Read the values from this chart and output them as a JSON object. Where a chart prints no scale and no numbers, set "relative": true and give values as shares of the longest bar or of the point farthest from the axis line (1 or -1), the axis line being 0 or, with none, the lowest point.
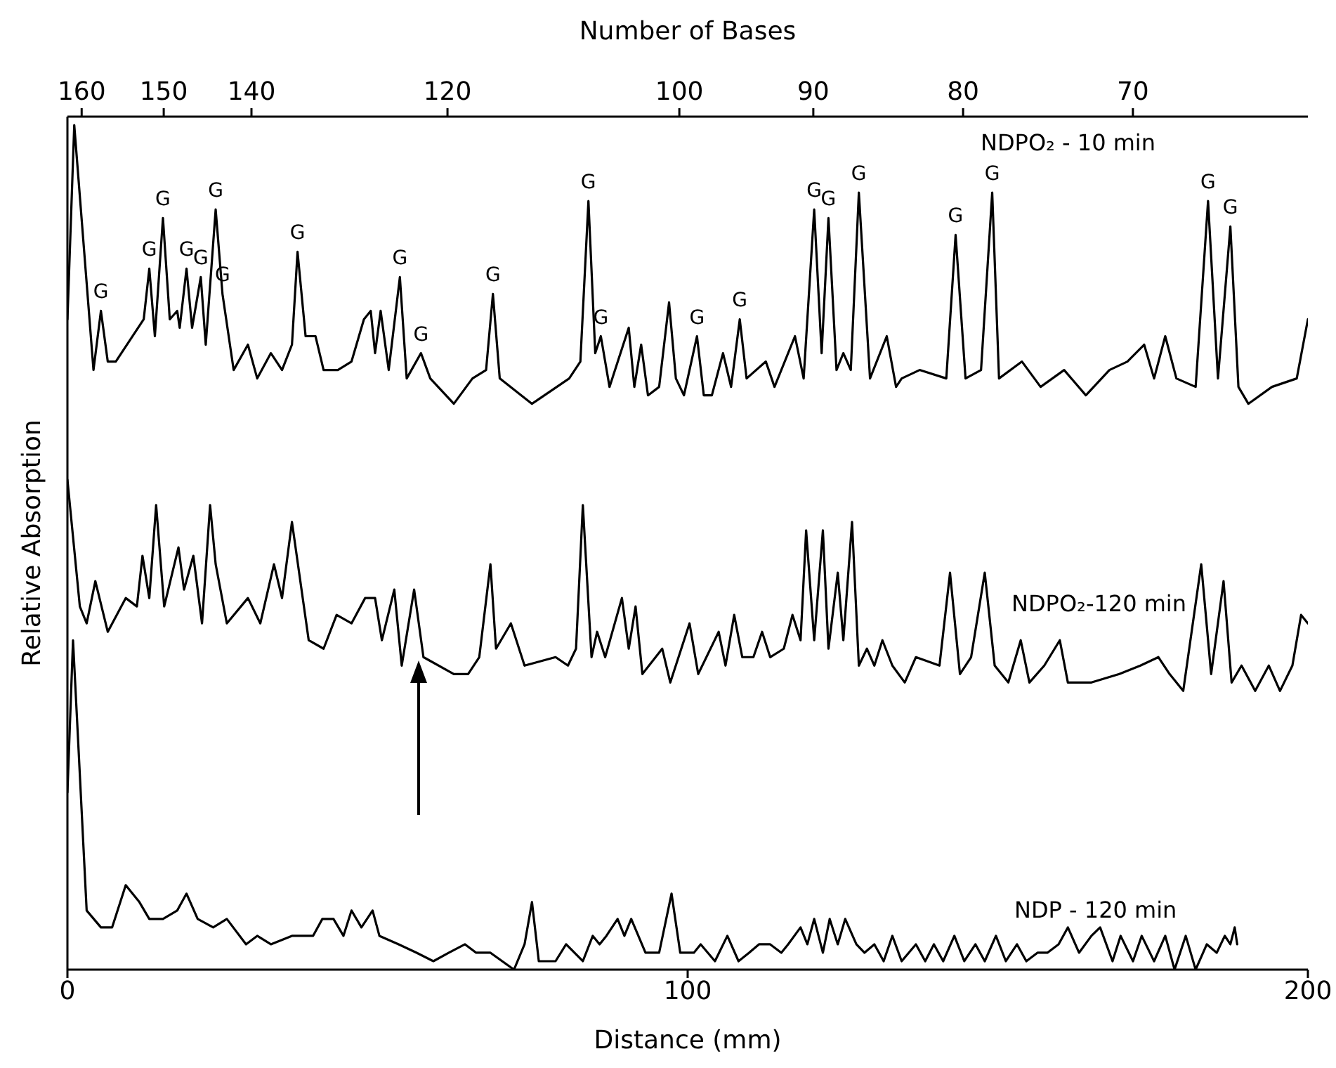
{
  "chart_data": {
    "type": "line",
    "relative": true,
    "xlabel": "Distance (mm)",
    "ylabel": "Relative Absorption",
    "x2label": "Number of Bases",
    "xlim": [
      0,
      200
    ],
    "xticks": [
      0,
      100,
      200
    ],
    "x2lim": [
      161.8,
      61
    ],
    "x2ticks": [
      160,
      150,
      140,
      120,
      100,
      90,
      80,
      70
    ],
    "log": "x2",
    "grid": false,
    "legend": false,
    "series": [
      {
        "name": "NDPO₂ - 10 min",
        "color": "#000000",
        "x": [
          0,
          1.1,
          4.2,
          5.4,
          6.5,
          7.8,
          12.3,
          13.2,
          14.1,
          15.4,
          16.5,
          17.7,
          18.1,
          19.2,
          20.1,
          21.5,
          22.3,
          23.9,
          25.0,
          26.8,
          29.1,
          30.6,
          32.8,
          34.6,
          36.2,
          37.1,
          38.4,
          40.0,
          41.3,
          43.6,
          45.8,
          47.8,
          48.9,
          49.6,
          50.5,
          51.8,
          53.6,
          54.7,
          57.0,
          58.5,
          62.3,
          65.3,
          67.5,
          68.6,
          69.7,
          74.9,
          80.9,
          82.7,
          84.0,
          85.1,
          86.0,
          87.4,
          90.5,
          91.4,
          92.5,
          93.6,
          95.4,
          97.0,
          98.1,
          99.4,
          101.5,
          102.6,
          103.9,
          105.7,
          107.0,
          108.4,
          109.5,
          112.6,
          114.0,
          117.3,
          118.7,
          120.4,
          121.6,
          122.7,
          124.0,
          125.1,
          126.3,
          127.6,
          129.4,
          132.1,
          133.6,
          134.5,
          137.4,
          141.7,
          143.2,
          144.8,
          147.3,
          149.1,
          150.2,
          153.9,
          156.9,
          160.7,
          164.2,
          168.0,
          170.9,
          173.6,
          175.2,
          177.0,
          178.8,
          181.9,
          183.9,
          185.5,
          187.5,
          188.8,
          190.4,
          194.2,
          198.2,
          200
        ],
        "values": [
          0.77,
          1.0,
          0.71,
          0.78,
          0.72,
          0.72,
          0.77,
          0.83,
          0.75,
          0.89,
          0.77,
          0.78,
          0.76,
          0.83,
          0.76,
          0.82,
          0.74,
          0.9,
          0.8,
          0.71,
          0.74,
          0.7,
          0.73,
          0.71,
          0.74,
          0.85,
          0.75,
          0.75,
          0.71,
          0.71,
          0.72,
          0.77,
          0.78,
          0.73,
          0.78,
          0.71,
          0.82,
          0.7,
          0.73,
          0.7,
          0.67,
          0.7,
          0.71,
          0.8,
          0.7,
          0.67,
          0.7,
          0.72,
          0.91,
          0.73,
          0.75,
          0.69,
          0.76,
          0.69,
          0.74,
          0.68,
          0.69,
          0.79,
          0.7,
          0.68,
          0.75,
          0.68,
          0.68,
          0.73,
          0.69,
          0.77,
          0.7,
          0.72,
          0.69,
          0.75,
          0.7,
          0.9,
          0.73,
          0.89,
          0.71,
          0.73,
          0.71,
          0.92,
          0.7,
          0.75,
          0.69,
          0.7,
          0.71,
          0.7,
          0.87,
          0.7,
          0.71,
          0.92,
          0.7,
          0.72,
          0.69,
          0.71,
          0.68,
          0.71,
          0.72,
          0.74,
          0.7,
          0.75,
          0.7,
          0.69,
          0.91,
          0.7,
          0.88,
          0.69,
          0.67,
          0.69,
          0.7,
          0.77
        ]
      },
      {
        "name": "NDPO₂-120 min",
        "color": "#000000",
        "x": [
          0,
          2.0,
          3.1,
          4.5,
          6.5,
          9.4,
          11.2,
          12.1,
          13.2,
          14.3,
          15.6,
          17.9,
          18.8,
          20.3,
          21.7,
          23.0,
          23.9,
          25.7,
          29.1,
          31.1,
          33.3,
          34.6,
          36.2,
          38.9,
          41.3,
          43.4,
          45.8,
          48.0,
          49.6,
          50.7,
          52.7,
          53.9,
          55.9,
          57.4,
          62.3,
          64.6,
          66.4,
          68.2,
          69.1,
          71.5,
          73.7,
          78.7,
          80.7,
          82.0,
          83.1,
          84.5,
          85.4,
          86.7,
          89.4,
          90.5,
          91.6,
          92.7,
          95.9,
          97.2,
          100.3,
          101.7,
          105.0,
          106.1,
          107.5,
          108.8,
          110.6,
          112.0,
          113.3,
          115.5,
          116.9,
          118.2,
          119.1,
          120.4,
          121.8,
          122.7,
          124.2,
          125.1,
          126.5,
          127.6,
          128.9,
          130.1,
          131.4,
          133.0,
          135.0,
          136.8,
          140.6,
          142.3,
          143.9,
          145.7,
          147.9,
          149.5,
          151.7,
          153.7,
          155.1,
          157.5,
          160.0,
          161.3,
          165.1,
          169.6,
          173.0,
          175.9,
          177.7,
          179.9,
          182.8,
          184.4,
          186.4,
          187.7,
          189.3,
          191.5,
          193.7,
          195.5,
          197.5,
          198.9,
          200
        ],
        "values": [
          0.58,
          0.43,
          0.41,
          0.46,
          0.4,
          0.44,
          0.43,
          0.49,
          0.44,
          0.55,
          0.43,
          0.5,
          0.45,
          0.49,
          0.41,
          0.55,
          0.48,
          0.41,
          0.44,
          0.41,
          0.48,
          0.44,
          0.53,
          0.39,
          0.38,
          0.42,
          0.41,
          0.44,
          0.44,
          0.39,
          0.45,
          0.36,
          0.45,
          0.37,
          0.35,
          0.35,
          0.37,
          0.48,
          0.38,
          0.41,
          0.36,
          0.37,
          0.36,
          0.38,
          0.55,
          0.37,
          0.4,
          0.37,
          0.44,
          0.38,
          0.43,
          0.35,
          0.38,
          0.34,
          0.41,
          0.35,
          0.4,
          0.36,
          0.42,
          0.37,
          0.37,
          0.4,
          0.37,
          0.38,
          0.42,
          0.39,
          0.52,
          0.39,
          0.52,
          0.38,
          0.47,
          0.39,
          0.53,
          0.36,
          0.38,
          0.36,
          0.39,
          0.36,
          0.34,
          0.37,
          0.36,
          0.47,
          0.35,
          0.37,
          0.47,
          0.36,
          0.34,
          0.39,
          0.34,
          0.36,
          0.39,
          0.34,
          0.34,
          0.35,
          0.36,
          0.37,
          0.35,
          0.33,
          0.48,
          0.35,
          0.46,
          0.34,
          0.36,
          0.33,
          0.36,
          0.33,
          0.36,
          0.42,
          0.41
        ]
      },
      {
        "name": "NDP - 120 min",
        "color": "#000000",
        "x": [
          0,
          0.9,
          1.8,
          3.1,
          5.4,
          7.2,
          9.4,
          11.6,
          13.2,
          15.4,
          17.7,
          19.2,
          21.0,
          23.5,
          25.7,
          28.8,
          30.6,
          32.8,
          36.2,
          39.6,
          41.1,
          42.9,
          44.5,
          45.8,
          47.4,
          49.2,
          50.3,
          53.4,
          56.3,
          59.0,
          61.5,
          64.1,
          65.9,
          68.2,
          72.0,
          73.7,
          74.9,
          76.0,
          78.7,
          80.4,
          83.1,
          84.7,
          85.8,
          86.9,
          88.7,
          89.8,
          90.9,
          93.2,
          95.4,
          97.4,
          98.8,
          101.0,
          102.1,
          104.4,
          106.4,
          108.2,
          109.9,
          111.5,
          113.3,
          115.1,
          116.2,
          118.2,
          119.3,
          120.4,
          121.8,
          122.9,
          124.2,
          125.4,
          127.2,
          128.5,
          130.1,
          131.6,
          133.0,
          134.5,
          136.8,
          138.3,
          139.7,
          141.2,
          143.0,
          144.6,
          146.4,
          147.9,
          149.7,
          151.3,
          153.1,
          154.6,
          156.4,
          158.0,
          159.8,
          161.3,
          163.1,
          165.1,
          166.5,
          168.5,
          169.8,
          171.8,
          173.2,
          175.2,
          177.0,
          178.5,
          180.3,
          181.9,
          183.7,
          185.3,
          186.6,
          187.5,
          188.2,
          188.6
        ],
        "values": [
          0.21,
          0.39,
          0.26,
          0.07,
          0.05,
          0.05,
          0.1,
          0.08,
          0.06,
          0.06,
          0.07,
          0.09,
          0.06,
          0.05,
          0.06,
          0.03,
          0.04,
          0.03,
          0.04,
          0.04,
          0.06,
          0.06,
          0.04,
          0.07,
          0.05,
          0.07,
          0.04,
          0.03,
          0.02,
          0.01,
          0.02,
          0.03,
          0.02,
          0.02,
          0.0,
          0.03,
          0.08,
          0.01,
          0.01,
          0.03,
          0.01,
          0.04,
          0.03,
          0.04,
          0.06,
          0.04,
          0.06,
          0.02,
          0.02,
          0.09,
          0.02,
          0.02,
          0.03,
          0.01,
          0.04,
          0.01,
          0.02,
          0.03,
          0.03,
          0.02,
          0.03,
          0.05,
          0.03,
          0.06,
          0.02,
          0.06,
          0.03,
          0.06,
          0.03,
          0.02,
          0.03,
          0.01,
          0.04,
          0.01,
          0.03,
          0.01,
          0.03,
          0.01,
          0.04,
          0.01,
          0.03,
          0.01,
          0.04,
          0.01,
          0.03,
          0.01,
          0.02,
          0.02,
          0.03,
          0.05,
          0.02,
          0.04,
          0.05,
          0.01,
          0.04,
          0.01,
          0.04,
          0.01,
          0.04,
          0.0,
          0.04,
          0.0,
          0.03,
          0.02,
          0.04,
          0.03,
          0.05,
          0.03
        ]
      }
    ],
    "annotations": [
      {
        "text": "G",
        "x": 5.4,
        "y": 0.78
      },
      {
        "text": "G",
        "x": 13.2,
        "y": 0.83
      },
      {
        "text": "G",
        "x": 15.4,
        "y": 0.89
      },
      {
        "text": "G",
        "x": 19.2,
        "y": 0.83
      },
      {
        "text": "G",
        "x": 21.5,
        "y": 0.82
      },
      {
        "text": "G",
        "x": 23.9,
        "y": 0.9
      },
      {
        "text": "G",
        "x": 25.0,
        "y": 0.8
      },
      {
        "text": "G",
        "x": 37.1,
        "y": 0.85
      },
      {
        "text": "G",
        "x": 53.6,
        "y": 0.82
      },
      {
        "text": "G",
        "x": 57.0,
        "y": 0.73
      },
      {
        "text": "G",
        "x": 68.6,
        "y": 0.8
      },
      {
        "text": "G",
        "x": 84.0,
        "y": 0.91
      },
      {
        "text": "G",
        "x": 86.0,
        "y": 0.75
      },
      {
        "text": "G",
        "x": 101.5,
        "y": 0.75
      },
      {
        "text": "G",
        "x": 108.4,
        "y": 0.77
      },
      {
        "text": "G",
        "x": 120.4,
        "y": 0.9
      },
      {
        "text": "G",
        "x": 122.7,
        "y": 0.89
      },
      {
        "text": "G",
        "x": 127.6,
        "y": 0.92
      },
      {
        "text": "G",
        "x": 143.2,
        "y": 0.87
      },
      {
        "text": "G",
        "x": 149.1,
        "y": 0.92
      },
      {
        "text": "G",
        "x": 183.9,
        "y": 0.91
      },
      {
        "text": "G",
        "x": 187.5,
        "y": 0.88
      }
    ]
  }
}
